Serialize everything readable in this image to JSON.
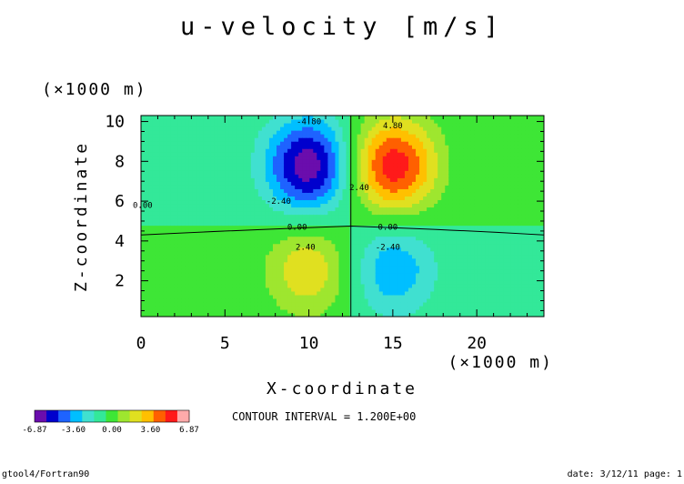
{
  "chart_data": {
    "type": "heatmap",
    "title": "u-velocity [m/s]",
    "xlabel": "X-coordinate",
    "ylabel": "Z-coordinate",
    "x_unit": "(×1000 m)",
    "y_unit": "(×1000 m)",
    "xlim": [
      0,
      24
    ],
    "ylim": [
      0.2,
      10.3
    ],
    "x_ticks": [
      "0",
      "5",
      "10",
      "15",
      "20"
    ],
    "x_tick_values": [
      0,
      5,
      10,
      15,
      20
    ],
    "y_ticks": [
      "2",
      "4",
      "6",
      "8",
      "10"
    ],
    "y_tick_values": [
      2,
      4,
      6,
      8,
      10
    ],
    "contour_interval_text": "CONTOUR INTERVAL = 1.200E+00",
    "contour_labels": [
      {
        "text": "-4.80",
        "x": 10.0,
        "y": 10.0
      },
      {
        "text": "4.80",
        "x": 15.0,
        "y": 9.8
      },
      {
        "text": "-2.40",
        "x": 8.2,
        "y": 6.0
      },
      {
        "text": "2.40",
        "x": 13.0,
        "y": 6.7
      },
      {
        "text": "0.00",
        "x": 9.3,
        "y": 4.7
      },
      {
        "text": "0.00",
        "x": 14.7,
        "y": 4.7
      },
      {
        "text": "0.00",
        "x": 0.1,
        "y": 5.8
      },
      {
        "text": "2.40",
        "x": 9.8,
        "y": 3.7
      },
      {
        "text": "-2.40",
        "x": 14.7,
        "y": 3.7
      }
    ],
    "field_model": {
      "vortices": [
        {
          "x": 10,
          "z": 7.8,
          "amplitude": -6.87
        },
        {
          "x": 15,
          "z": 7.8,
          "amplitude": 6.87
        },
        {
          "x": 10,
          "z": 2.6,
          "amplitude": 3.4
        },
        {
          "x": 15,
          "z": 2.6,
          "amplitude": -3.4
        }
      ]
    },
    "colorbar": {
      "levels": [
        -6.87,
        -6.0,
        -4.8,
        -3.6,
        -2.4,
        -1.2,
        0,
        1.2,
        2.4,
        3.6,
        4.8,
        6.0,
        6.87
      ],
      "colors": [
        "#6a0dad",
        "#0000cd",
        "#1e63ff",
        "#00bfff",
        "#40e0d0",
        "#33e899",
        "#3ee636",
        "#9ee62f",
        "#e0e020",
        "#ffc000",
        "#ff6000",
        "#ff1a1a",
        "#ffaaaa"
      ],
      "labels": [
        "-6.87",
        "-3.60",
        "0.00",
        "3.60",
        "6.87"
      ]
    }
  },
  "footer": {
    "left": "gtool4/Fortran90",
    "right": "date: 3/12/11 page: 1"
  }
}
